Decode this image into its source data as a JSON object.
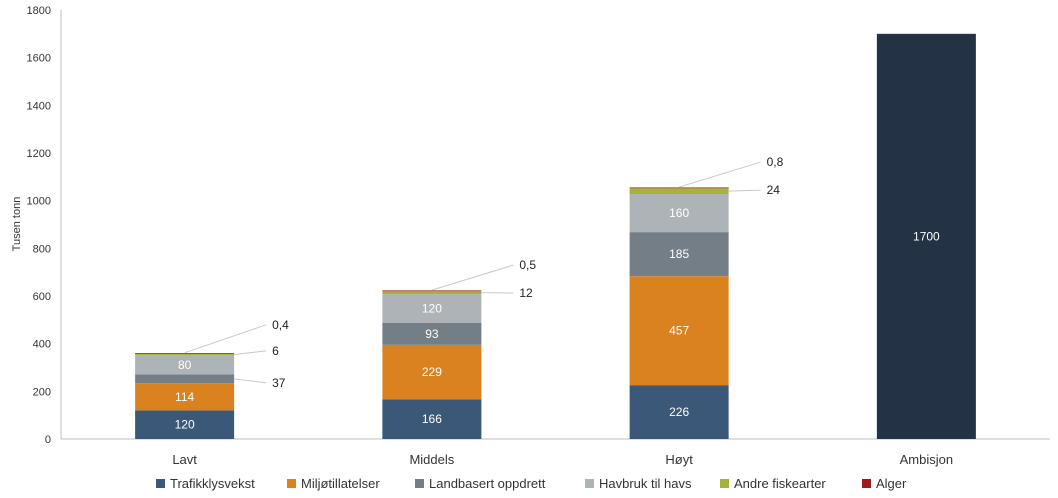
{
  "chart_data": {
    "type": "bar",
    "stacked": true,
    "title": "",
    "xlabel": "",
    "ylabel": "Tusen tonn",
    "ylim": [
      0,
      1800
    ],
    "yticks": [
      0,
      200,
      400,
      600,
      800,
      1000,
      1200,
      1400,
      1600,
      1800
    ],
    "grid": false,
    "legend_position": "bottom",
    "categories": [
      "Lavt",
      "Middels",
      "Høyt",
      "Ambisjon"
    ],
    "series": [
      {
        "name": "Trafikklysvekst",
        "color": "#3b5878",
        "values": [
          120,
          166,
          226,
          null
        ],
        "labels": [
          "120",
          "166",
          "226",
          ""
        ]
      },
      {
        "name": "Miljøtillatelser",
        "color": "#d9821f",
        "values": [
          114,
          229,
          457,
          null
        ],
        "labels": [
          "114",
          "229",
          "457",
          ""
        ]
      },
      {
        "name": "Landbasert oppdrett",
        "color": "#747e86",
        "values": [
          37,
          93,
          185,
          null
        ],
        "labels": [
          "37",
          "93",
          "185",
          ""
        ]
      },
      {
        "name": "Havbruk til havs",
        "color": "#aeb3b8",
        "values": [
          80,
          120,
          160,
          null
        ],
        "labels": [
          "80",
          "120",
          "160",
          ""
        ]
      },
      {
        "name": "Andre fiskearter",
        "color": "#a6b33a",
        "values": [
          6,
          12,
          24,
          null
        ],
        "labels": [
          "6",
          "12",
          "24",
          ""
        ]
      },
      {
        "name": "Alger",
        "color": "#9b1b1b",
        "values": [
          0.4,
          0.5,
          0.8,
          null
        ],
        "labels": [
          "0,4",
          "0,5",
          "0,8",
          ""
        ]
      }
    ],
    "total_bar": {
      "category": "Ambisjon",
      "value": 1700,
      "label": "1700",
      "color": "#233345"
    }
  }
}
